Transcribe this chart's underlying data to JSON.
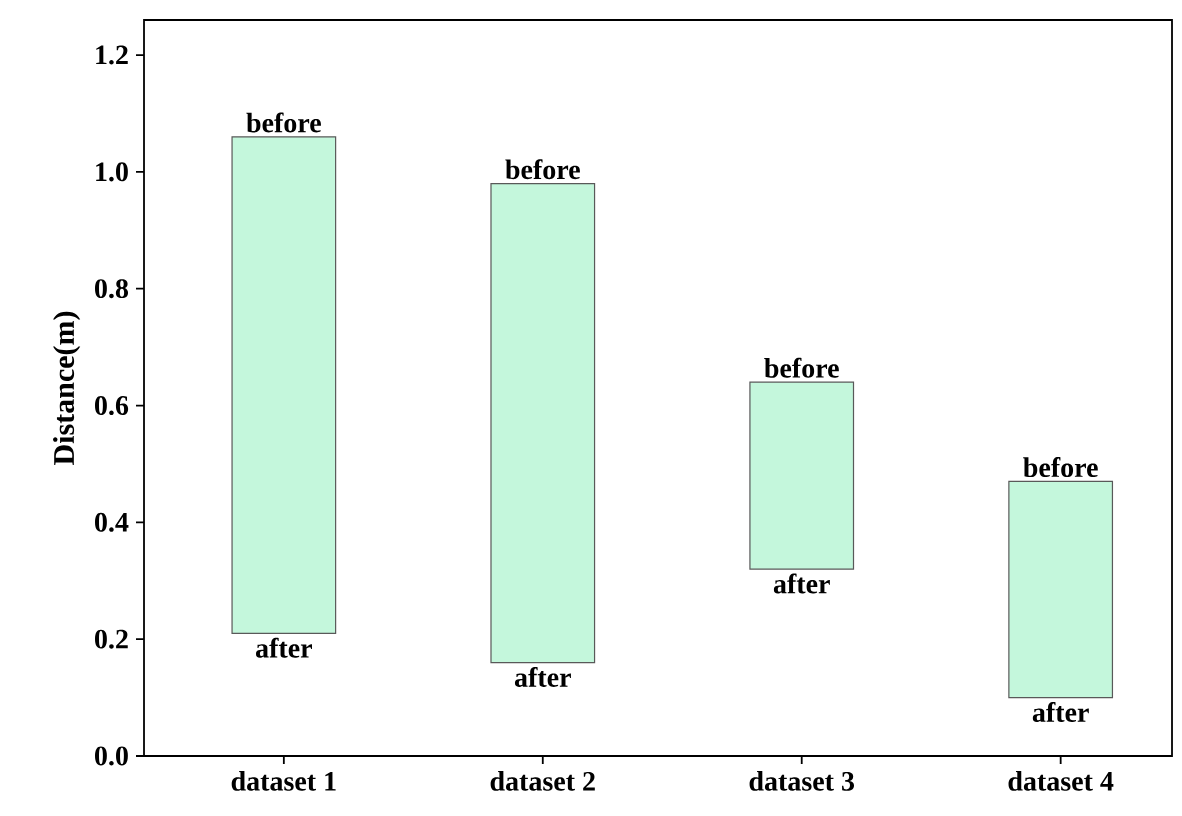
{
  "chart_data": {
    "type": "bar",
    "ylabel": "Distance(m)",
    "categories": [
      "dataset 1",
      "dataset 2",
      "dataset 3",
      "dataset 4"
    ],
    "base": [
      0.21,
      0.16,
      0.32,
      0.1
    ],
    "values": [
      0.85,
      0.82,
      0.32,
      0.37
    ],
    "color": "#c4f7dc",
    "ylim": [
      0,
      1.26
    ],
    "yticks": [
      {
        "value": 0,
        "label": "0.0"
      },
      {
        "value": 0.2,
        "label": "0.2"
      },
      {
        "value": 0.4,
        "label": "0.4"
      },
      {
        "value": 0.6,
        "label": "0.6"
      },
      {
        "value": 0.8,
        "label": "0.8"
      },
      {
        "value": 1.0,
        "label": "1.0"
      },
      {
        "value": 1.2,
        "label": "1.2"
      }
    ],
    "annotations": [
      {
        "text": "before",
        "x": "dataset 1",
        "y": 1.06
      },
      {
        "text": "after",
        "x": "dataset 1",
        "y": 0.21
      },
      {
        "text": "before",
        "x": "dataset 2",
        "y": 0.98
      },
      {
        "text": "after",
        "x": "dataset 2",
        "y": 0.16
      },
      {
        "text": "before",
        "x": "dataset 3",
        "y": 0.64
      },
      {
        "text": "after",
        "x": "dataset 3",
        "y": 0.32
      },
      {
        "text": "before",
        "x": "dataset 4",
        "y": 0.47
      },
      {
        "text": "after",
        "x": "dataset 4",
        "y": 0.1
      }
    ]
  }
}
